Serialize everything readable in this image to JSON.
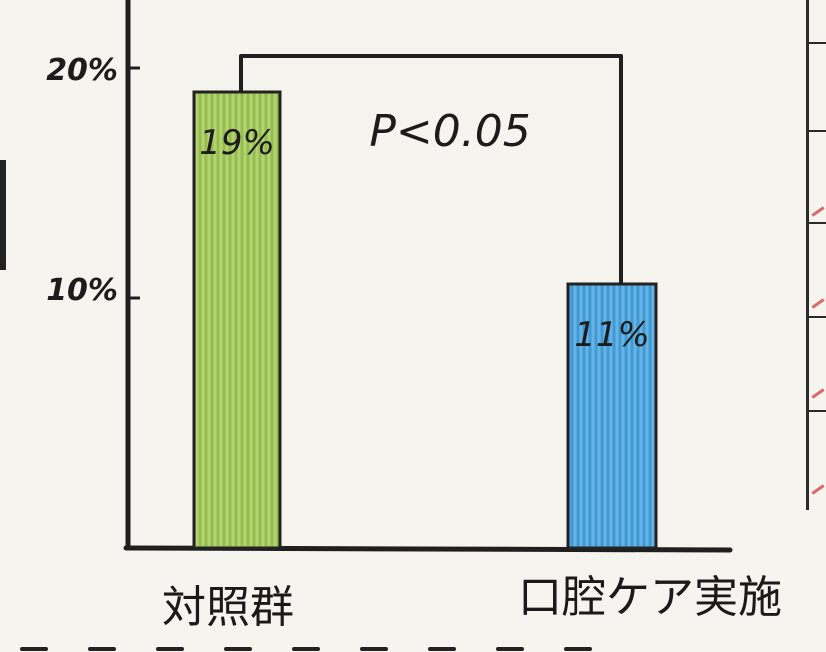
{
  "chart_data": {
    "type": "bar",
    "categories": [
      "対照群",
      "口腔ケア実施"
    ],
    "values": [
      19,
      11
    ],
    "value_labels": [
      "19%",
      "11%"
    ],
    "colors": [
      "#9dc35a",
      "#4fa8e0"
    ],
    "ylim": [
      0,
      20
    ],
    "yticks": [
      10,
      20
    ],
    "ytick_labels": [
      "10%",
      "20%"
    ],
    "significance": "P<0.05",
    "title": "",
    "xlabel": "",
    "ylabel": "",
    "grid": false
  }
}
